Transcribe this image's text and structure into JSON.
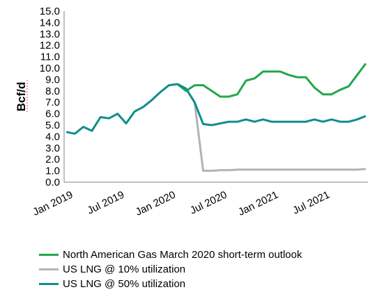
{
  "chart_data": {
    "type": "line",
    "ylabel": "Bcf/d",
    "ylim": [
      0,
      15
    ],
    "yticks": [
      "0.0",
      "1.0",
      "2.0",
      "3.0",
      "4.0",
      "5.0",
      "6.0",
      "7.0",
      "8.0",
      "9.0",
      "10.0",
      "11.0",
      "12.0",
      "13.0",
      "14.0",
      "15.0"
    ],
    "xticks": [
      {
        "label": "Jan 2019",
        "month": "2019-01"
      },
      {
        "label": "Jul 2019",
        "month": "2019-07"
      },
      {
        "label": "Jan 2020",
        "month": "2020-01"
      },
      {
        "label": "Jul 2020",
        "month": "2020-07"
      },
      {
        "label": "Jan 2021",
        "month": "2021-01"
      },
      {
        "label": "Jul 2021",
        "month": "2021-07"
      }
    ],
    "x": [
      "2019-01",
      "2019-02",
      "2019-03",
      "2019-04",
      "2019-05",
      "2019-06",
      "2019-07",
      "2019-08",
      "2019-09",
      "2019-10",
      "2019-11",
      "2019-12",
      "2020-01",
      "2020-02",
      "2020-03",
      "2020-04",
      "2020-05",
      "2020-06",
      "2020-07",
      "2020-08",
      "2020-09",
      "2020-10",
      "2020-11",
      "2020-12",
      "2021-01",
      "2021-02",
      "2021-03",
      "2021-04",
      "2021-05",
      "2021-06",
      "2021-07",
      "2021-08",
      "2021-09",
      "2021-10",
      "2021-11",
      "2021-12"
    ],
    "grid": false,
    "legend_position": "bottom",
    "series": [
      {
        "name": "North American Gas March 2020 short-term outlook",
        "color": "#21a84a",
        "values": [
          null,
          null,
          null,
          null,
          null,
          null,
          null,
          null,
          null,
          null,
          null,
          null,
          null,
          8.6,
          8.0,
          8.5,
          8.5,
          8.0,
          7.5,
          7.5,
          7.7,
          8.9,
          9.1,
          9.7,
          9.7,
          9.7,
          9.4,
          9.2,
          9.2,
          8.3,
          7.7,
          7.7,
          8.1,
          8.4,
          9.4,
          10.4
        ]
      },
      {
        "name": "US LNG @ 10% utilization",
        "color": "#b3b3b3",
        "values": [
          null,
          null,
          null,
          null,
          null,
          null,
          null,
          null,
          null,
          null,
          null,
          null,
          null,
          8.6,
          8.2,
          7.0,
          1.0,
          1.0,
          1.05,
          1.05,
          1.1,
          1.1,
          1.1,
          1.1,
          1.1,
          1.1,
          1.1,
          1.1,
          1.1,
          1.1,
          1.1,
          1.1,
          1.1,
          1.1,
          1.1,
          1.15
        ]
      },
      {
        "name": "US LNG @ 50% utilization",
        "color": "#0e8e8b",
        "values": [
          4.4,
          4.25,
          4.85,
          4.5,
          5.7,
          5.6,
          6.0,
          5.15,
          6.2,
          6.6,
          7.2,
          7.9,
          8.5,
          8.6,
          8.2,
          7.0,
          5.1,
          5.0,
          5.15,
          5.3,
          5.3,
          5.5,
          5.3,
          5.5,
          5.3,
          5.3,
          5.3,
          5.3,
          5.3,
          5.5,
          5.3,
          5.5,
          5.3,
          5.3,
          5.5,
          5.8
        ]
      }
    ]
  }
}
